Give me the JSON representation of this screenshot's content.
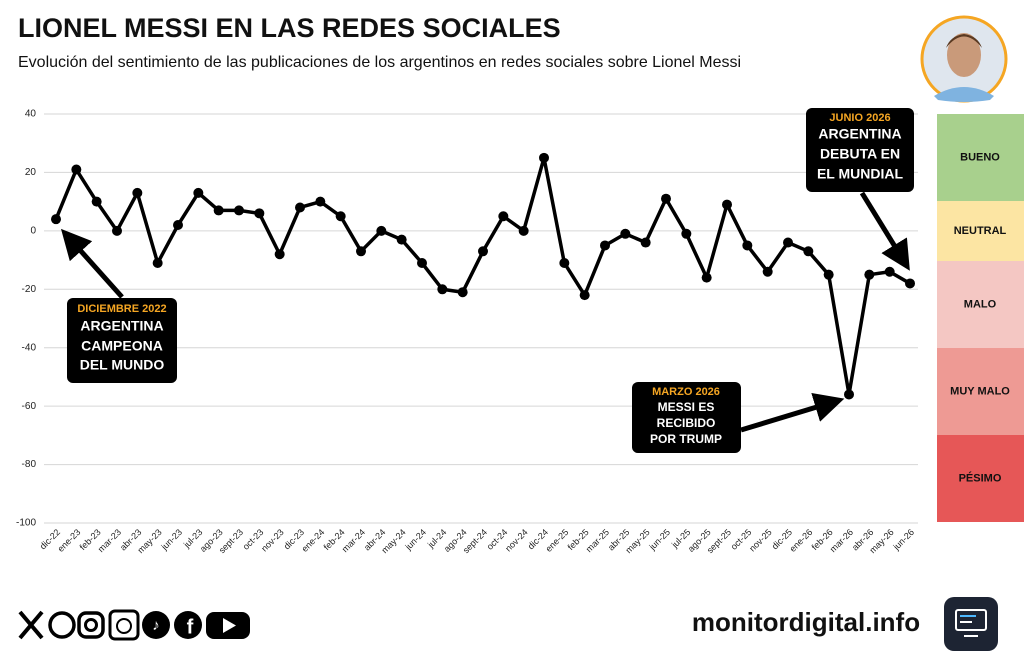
{
  "chart_data": {
    "type": "line",
    "title": "LIONEL MESSI EN LAS REDES SOCIALES",
    "subtitle": "Evolución del sentimiento de las publicaciones de los argentinos en redes sociales sobre Lionel Messi",
    "categories": [
      "dic-22",
      "ene-23",
      "feb-23",
      "mar-23",
      "abr-23",
      "may-23",
      "jun-23",
      "jul-23",
      "ago-23",
      "sept-23",
      "oct-23",
      "nov-23",
      "dic-23",
      "ene-24",
      "feb-24",
      "mar-24",
      "abr-24",
      "may-24",
      "jun-24",
      "jul-24",
      "ago-24",
      "sept-24",
      "oct-24",
      "nov-24",
      "dic-24",
      "ene-25",
      "feb-25",
      "mar-25",
      "abr-25",
      "may-25",
      "jun-25",
      "jul-25",
      "ago-25",
      "sept-25",
      "oct-25",
      "nov-25",
      "dic-25",
      "ene-26",
      "feb-26",
      "mar-26",
      "abr-26",
      "may-26",
      "jun-26"
    ],
    "values": [
      4,
      21,
      10,
      0,
      13,
      -11,
      2,
      13,
      7,
      7,
      6,
      -8,
      8,
      10,
      5,
      -7,
      0,
      -3,
      -11,
      -20,
      -21,
      -7,
      5,
      0,
      25,
      -11,
      -22,
      -5,
      -1,
      -4,
      11,
      -1,
      -16,
      9,
      -5,
      -14,
      -4,
      -7,
      -15,
      -56,
      -15,
      -14,
      -18
    ],
    "color": "#000000",
    "ylim": [
      -100,
      40
    ],
    "yticks": [
      40,
      20,
      0,
      -20,
      -40,
      -60,
      -80,
      -100
    ],
    "grid": true,
    "sentiment_scale": [
      {
        "label": "BUENO",
        "color": "#a8d08d"
      },
      {
        "label": "NEUTRAL",
        "color": "#fce5a3"
      },
      {
        "label": "MALO",
        "color": "#f4c7c3"
      },
      {
        "label": "MUY MALO",
        "color": "#ee9a94"
      },
      {
        "label": "PÉSIMO",
        "color": "#e65757"
      }
    ],
    "annotations": [
      {
        "date": "DICIEMBRE 2022",
        "lines": [
          "ARGENTINA",
          "CAMPEONA",
          "DEL MUNDO"
        ]
      },
      {
        "date": "MARZO 2026",
        "lines": [
          "MESSI ES",
          "RECIBIDO",
          "POR TRUMP"
        ]
      },
      {
        "date": "JUNIO 2026",
        "lines": [
          "ARGENTINA",
          "DEBUTA EN",
          "EL MUNDIAL"
        ]
      }
    ]
  },
  "footer": {
    "site": "monitordigital.info"
  }
}
